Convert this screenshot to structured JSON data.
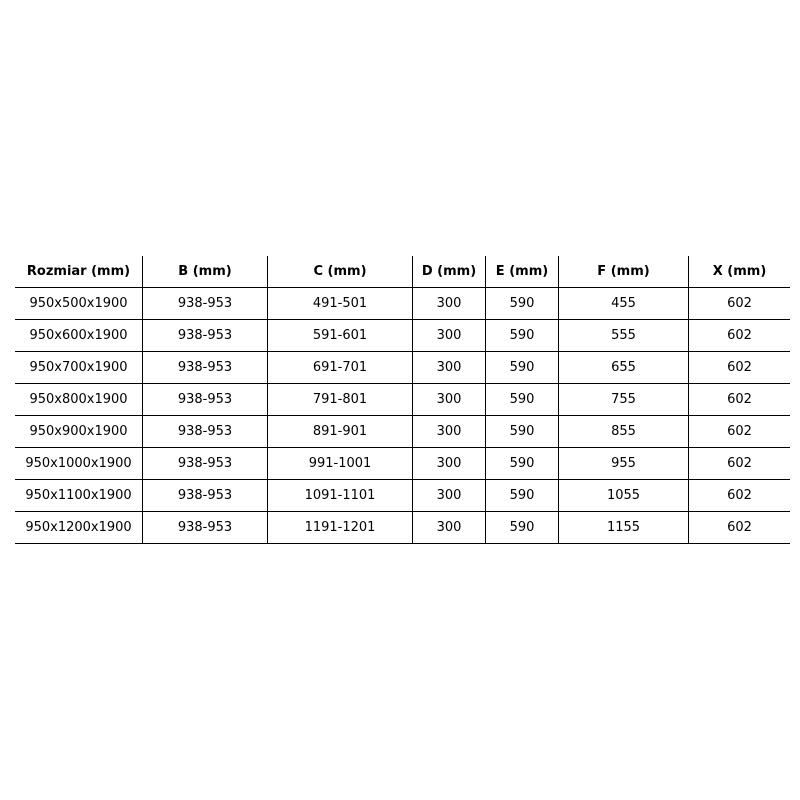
{
  "headers": [
    "Rozmiar (mm)",
    "B (mm)",
    "C (mm)",
    "D (mm)",
    "E (mm)",
    "F (mm)",
    "X (mm)"
  ],
  "rows": [
    [
      "950x500x1900",
      "938-953",
      "491-501",
      "300",
      "590",
      "455",
      "602"
    ],
    [
      "950x600x1900",
      "938-953",
      "591-601",
      "300",
      "590",
      "555",
      "602"
    ],
    [
      "950x700x1900",
      "938-953",
      "691-701",
      "300",
      "590",
      "655",
      "602"
    ],
    [
      "950x800x1900",
      "938-953",
      "791-801",
      "300",
      "590",
      "755",
      "602"
    ],
    [
      "950x900x1900",
      "938-953",
      "891-901",
      "300",
      "590",
      "855",
      "602"
    ],
    [
      "950x1000x1900",
      "938-953",
      "991-1001",
      "300",
      "590",
      "955",
      "602"
    ],
    [
      "950x1100x1900",
      "938-953",
      "1091-1101",
      "300",
      "590",
      "1055",
      "602"
    ],
    [
      "950x1200x1900",
      "938-953",
      "1191-1201",
      "300",
      "590",
      "1155",
      "602"
    ]
  ]
}
